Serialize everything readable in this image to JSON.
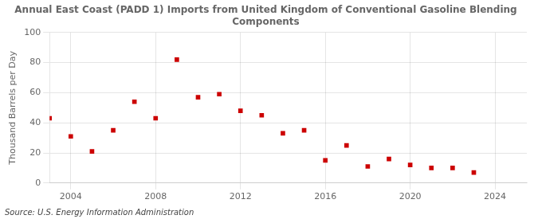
{
  "chart_data": {
    "type": "scatter",
    "title": "Annual East Coast (PADD 1) Imports from United Kingdom of Conventional Gasoline Blending\nComponents",
    "ylabel": "Thousand Barrels per Day",
    "annotation": "Source: U.S. Energy Information Administration",
    "x": [
      2003,
      2004,
      2005,
      2006,
      2007,
      2008,
      2009,
      2010,
      2011,
      2012,
      2013,
      2014,
      2015,
      2016,
      2017,
      2018,
      2019,
      2020,
      2021,
      2022,
      2023
    ],
    "values": [
      43,
      31,
      21,
      35,
      54,
      43,
      82,
      57,
      59,
      48,
      45,
      33,
      35,
      15,
      25,
      11,
      16,
      12,
      10,
      10,
      7
    ],
    "color": "#cc0000",
    "marker": "square",
    "xlim": [
      2003.0,
      2025.5
    ],
    "xticks": [
      2004,
      2008,
      2012,
      2016,
      2020,
      2024
    ],
    "ylim": [
      0,
      100
    ],
    "yticks": [
      0,
      20,
      40,
      60,
      80,
      100
    ],
    "grid": true
  }
}
